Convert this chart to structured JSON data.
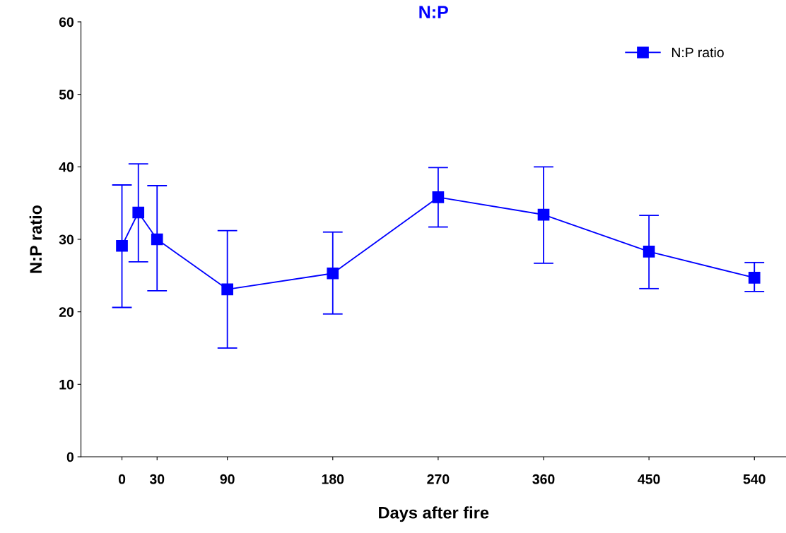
{
  "chart_data": {
    "type": "line",
    "title": "N:P",
    "xlabel": "Days after fire",
    "ylabel": "N:P ratio",
    "x": [
      0,
      14,
      30,
      90,
      180,
      270,
      360,
      450,
      540
    ],
    "series": [
      {
        "name": "N:P ratio",
        "color": "#0000ff",
        "values": [
          29.1,
          33.7,
          30.0,
          23.1,
          25.3,
          35.8,
          33.4,
          28.3,
          24.7
        ],
        "errors": [
          [
            20.6,
            37.5
          ],
          [
            26.9,
            40.4
          ],
          [
            22.9,
            37.4
          ],
          [
            15.0,
            31.2
          ],
          [
            19.7,
            31.0
          ],
          [
            31.7,
            39.9
          ],
          [
            26.7,
            40.0
          ],
          [
            23.2,
            33.3
          ],
          [
            22.8,
            26.8
          ]
        ]
      }
    ],
    "xlim": [
      -35,
      567
    ],
    "xticks": [
      0,
      30,
      90,
      180,
      270,
      360,
      450,
      540
    ],
    "ylim": [
      0,
      60
    ],
    "yticks": [
      0,
      10,
      20,
      30,
      40,
      50,
      60
    ],
    "marker": "square",
    "line_style": "solid",
    "grid": false,
    "legend": "top right"
  }
}
